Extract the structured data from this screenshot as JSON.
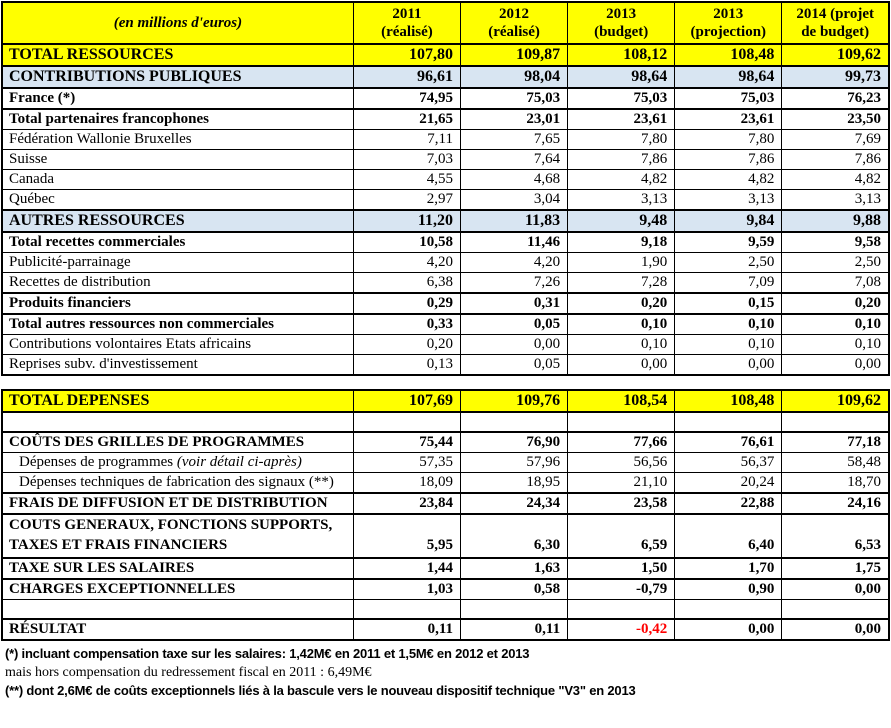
{
  "header": {
    "unit_label": "(en millions d'euros)",
    "columns": [
      {
        "line1": "2011",
        "line2": "(réalisé)"
      },
      {
        "line1": "2012",
        "line2": "(réalisé)"
      },
      {
        "line1": "2013",
        "line2": "(budget)"
      },
      {
        "line1": "2013",
        "line2": "(projection)"
      },
      {
        "line1": "2014 (projet",
        "line2": "de budget)"
      }
    ]
  },
  "resources": {
    "rows": [
      {
        "label": "TOTAL RESSOURCES",
        "style": "total",
        "values": [
          "107,80",
          "109,87",
          "108,12",
          "108,48",
          "109,62"
        ]
      },
      {
        "label": "CONTRIBUTIONS PUBLIQUES",
        "style": "section",
        "values": [
          "96,61",
          "98,04",
          "98,64",
          "98,64",
          "99,73"
        ]
      },
      {
        "label": "France (*)",
        "style": "bold",
        "values": [
          "74,95",
          "75,03",
          "75,03",
          "75,03",
          "76,23"
        ]
      },
      {
        "label": "Total partenaires francophones",
        "style": "bold",
        "values": [
          "21,65",
          "23,01",
          "23,61",
          "23,61",
          "23,50"
        ]
      },
      {
        "label": "Fédération Wallonie Bruxelles",
        "style": "normal",
        "values": [
          "7,11",
          "7,65",
          "7,80",
          "7,80",
          "7,69"
        ]
      },
      {
        "label": "Suisse",
        "style": "normal",
        "values": [
          "7,03",
          "7,64",
          "7,86",
          "7,86",
          "7,86"
        ]
      },
      {
        "label": "Canada",
        "style": "normal",
        "values": [
          "4,55",
          "4,68",
          "4,82",
          "4,82",
          "4,82"
        ]
      },
      {
        "label": "Québec",
        "style": "normal",
        "values": [
          "2,97",
          "3,04",
          "3,13",
          "3,13",
          "3,13"
        ]
      },
      {
        "label": "AUTRES RESSOURCES",
        "style": "section",
        "values": [
          "11,20",
          "11,83",
          "9,48",
          "9,84",
          "9,88"
        ]
      },
      {
        "label": "Total recettes commerciales",
        "style": "bold",
        "values": [
          "10,58",
          "11,46",
          "9,18",
          "9,59",
          "9,58"
        ]
      },
      {
        "label": "Publicité-parrainage",
        "style": "normal",
        "values": [
          "4,20",
          "4,20",
          "1,90",
          "2,50",
          "2,50"
        ]
      },
      {
        "label": "Recettes de distribution",
        "style": "normal",
        "values": [
          "6,38",
          "7,26",
          "7,28",
          "7,09",
          "7,08"
        ]
      },
      {
        "label": "Produits financiers",
        "style": "bold",
        "values": [
          "0,29",
          "0,31",
          "0,20",
          "0,15",
          "0,20"
        ]
      },
      {
        "label": "Total autres ressources non commerciales",
        "style": "bold",
        "values": [
          "0,33",
          "0,05",
          "0,10",
          "0,10",
          "0,10"
        ]
      },
      {
        "label": "Contributions volontaires Etats africains",
        "style": "normal",
        "values": [
          "0,20",
          "0,00",
          "0,10",
          "0,10",
          "0,10"
        ]
      },
      {
        "label": "Reprises subv. d'investissement",
        "style": "normal",
        "values": [
          "0,13",
          "0,05",
          "0,00",
          "0,00",
          "0,00"
        ]
      }
    ]
  },
  "expenses": {
    "rows": [
      {
        "label": "TOTAL DEPENSES",
        "style": "total",
        "values": [
          "107,69",
          "109,76",
          "108,54",
          "108,48",
          "109,62"
        ]
      },
      {
        "label": "",
        "style": "empty",
        "values": [
          "",
          "",
          "",
          "",
          ""
        ]
      },
      {
        "label": "COÛTS DES GRILLES DE PROGRAMMES",
        "style": "bold",
        "values": [
          "75,44",
          "76,90",
          "77,66",
          "76,61",
          "77,18"
        ]
      },
      {
        "label": "Dépenses de programmes ",
        "label_italic": "(voir détail ci-après)",
        "style": "indent",
        "values": [
          "57,35",
          "57,96",
          "56,56",
          "56,37",
          "58,48"
        ]
      },
      {
        "label": "Dépenses techniques de fabrication des signaux (**)",
        "style": "indent",
        "values": [
          "18,09",
          "18,95",
          "21,10",
          "20,24",
          "18,70"
        ]
      },
      {
        "label": "FRAIS DE DIFFUSION ET DE DISTRIBUTION",
        "style": "bold",
        "values": [
          "23,84",
          "24,34",
          "23,58",
          "22,88",
          "24,16"
        ]
      },
      {
        "label": "COUTS GENERAUX, FONCTIONS SUPPORTS, TAXES ET FRAIS FINANCIERS",
        "style": "bold tall",
        "values": [
          "5,95",
          "6,30",
          "6,59",
          "6,40",
          "6,53"
        ]
      },
      {
        "label": "TAXE SUR LES SALAIRES",
        "style": "bold",
        "values": [
          "1,44",
          "1,63",
          "1,50",
          "1,70",
          "1,75"
        ]
      },
      {
        "label": "CHARGES EXCEPTIONNELLES",
        "style": "bold",
        "values": [
          "1,03",
          "0,58",
          "-0,79",
          "0,90",
          "0,00"
        ]
      },
      {
        "label": "",
        "style": "empty",
        "values": [
          "",
          "",
          "",
          "",
          ""
        ]
      },
      {
        "label": "RÉSULTAT",
        "style": "bold result",
        "values": [
          "0,11",
          "0,11",
          "-0,42",
          "0,00",
          "0,00"
        ],
        "red": [
          2
        ]
      }
    ]
  },
  "footnotes": [
    {
      "text": "(*) incluant compensation taxe sur les salaires: 1,42M€ en 2011 et 1,5M€ en 2012 et 2013",
      "bold": true
    },
    {
      "text": "mais hors compensation du redressement fiscal en 2011 : 6,49M€",
      "bold": false
    },
    {
      "text": "(**) dont 2,6M€ de coûts exceptionnels liés à la bascule vers le nouveau dispositif technique \"V3\" en 2013",
      "bold": true
    }
  ],
  "colors": {
    "header_yellow": "#FFFF00",
    "section_blue": "#D8E5F2",
    "negative_red": "#FF0000",
    "border_black": "#000000"
  }
}
